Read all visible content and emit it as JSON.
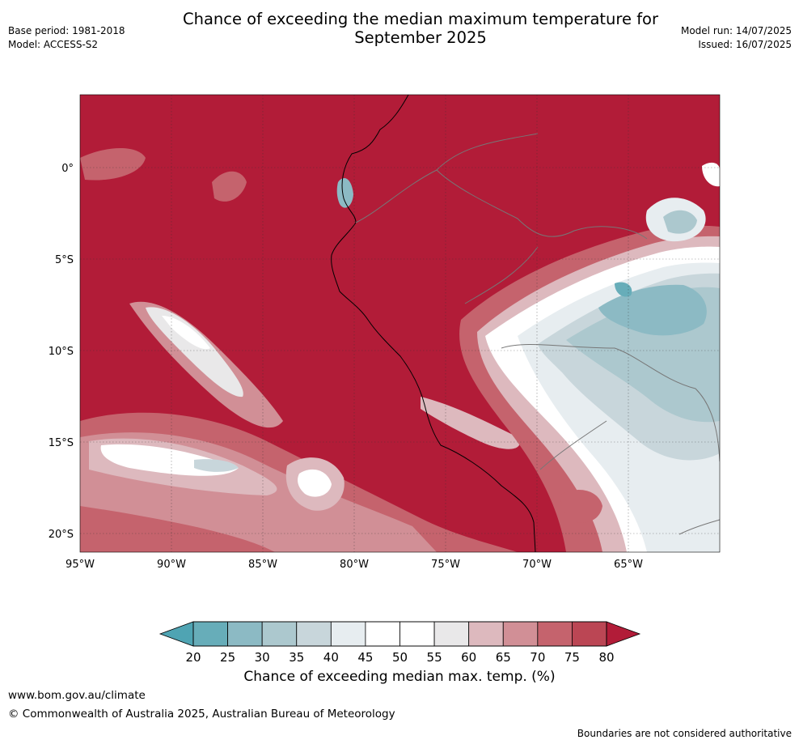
{
  "header": {
    "title_line1": "Chance of exceeding the median maximum temperature for",
    "title_line2": "September 2025",
    "base_period": "Base period: 1981-2018",
    "model": "Model: ACCESS-S2",
    "model_run": "Model run: 14/07/2025",
    "issued": "Issued: 16/07/2025"
  },
  "map": {
    "lat_ticks": [
      "0°",
      "5°S",
      "10°S",
      "15°S",
      "20°S"
    ],
    "lon_ticks": [
      "95°W",
      "90°W",
      "85°W",
      "80°W",
      "75°W",
      "70°W",
      "65°W"
    ]
  },
  "colorbar": {
    "ticks": [
      "20",
      "25",
      "30",
      "35",
      "40",
      "45",
      "50",
      "55",
      "60",
      "65",
      "70",
      "75",
      "80"
    ],
    "colors": [
      "#67adb9",
      "#8cbac4",
      "#acc8ce",
      "#c8d6db",
      "#e7edf0",
      "#ffffff",
      "#ffffff",
      "#e9e8e9",
      "#ddb9be",
      "#d18f96",
      "#c5636d",
      "#bb4654"
    ],
    "below_color": "#4fa4b3",
    "above_color": "#b21c38",
    "label": "Chance of exceeding median max. temp. (%)"
  },
  "footer": {
    "url": "www.bom.gov.au/climate",
    "copyright": "© Commonwealth of Australia 2025, Australian Bureau of Meteorology",
    "note": "Boundaries are not considered authoritative"
  }
}
